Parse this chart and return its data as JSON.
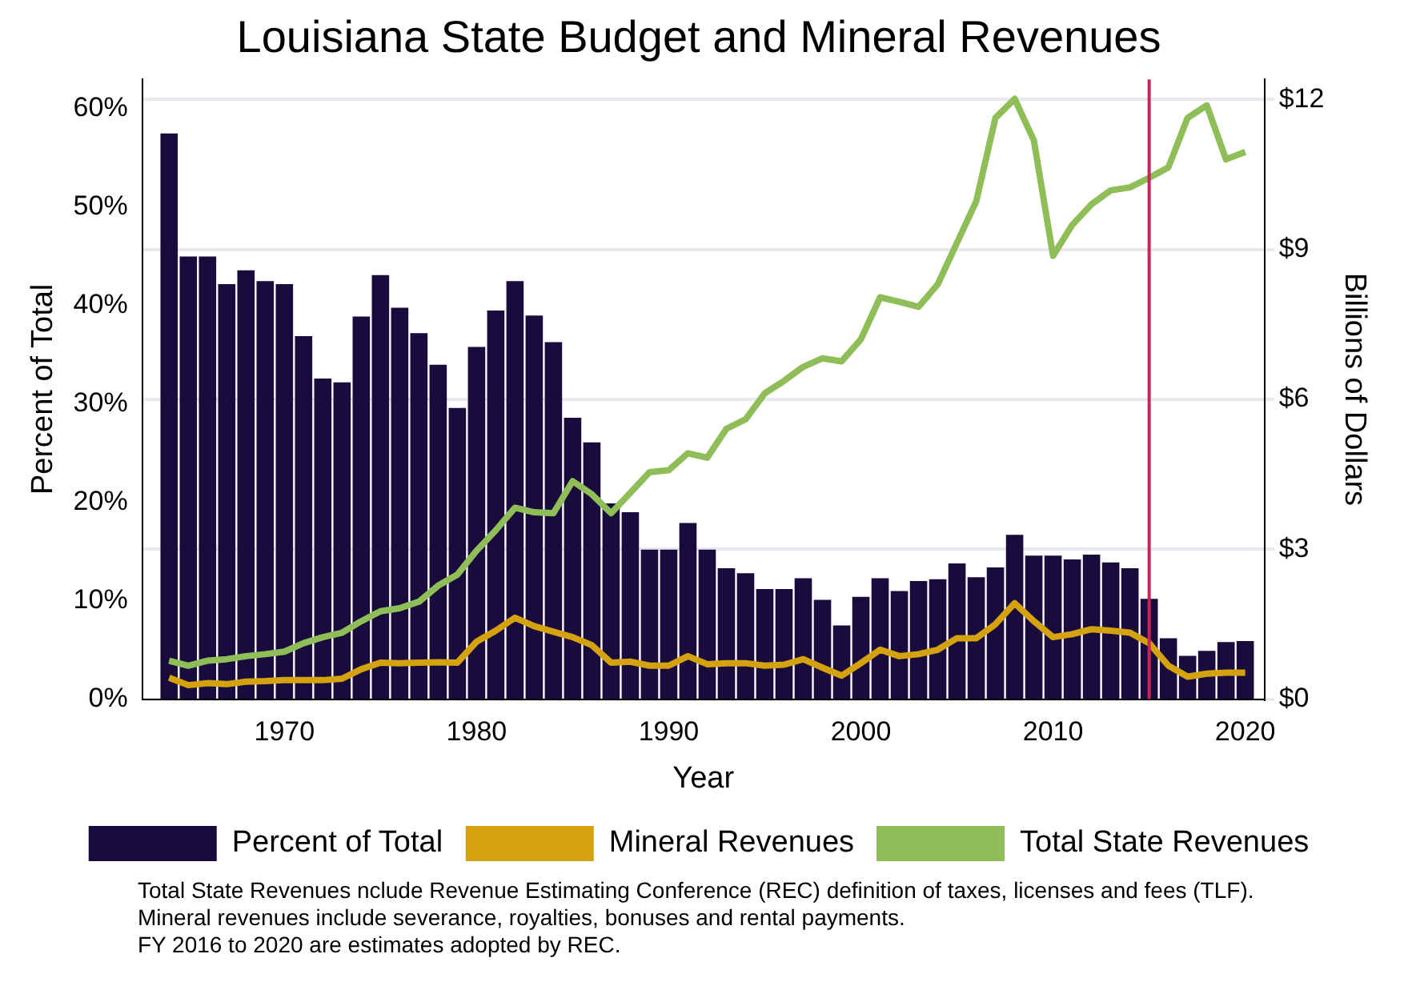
{
  "chart_data": {
    "type": "bar",
    "title": "Louisiana State Budget and Mineral Revenues",
    "xlabel": "Year",
    "ylabel": "Percent of Total",
    "y2label": "Billions of Dollars",
    "x": [
      1964,
      1965,
      1966,
      1967,
      1968,
      1969,
      1970,
      1971,
      1972,
      1973,
      1974,
      1975,
      1976,
      1977,
      1978,
      1979,
      1980,
      1981,
      1982,
      1983,
      1984,
      1985,
      1986,
      1987,
      1988,
      1989,
      1990,
      1991,
      1992,
      1993,
      1994,
      1995,
      1996,
      1997,
      1998,
      1999,
      2000,
      2001,
      2002,
      2003,
      2004,
      2005,
      2006,
      2007,
      2008,
      2009,
      2010,
      2011,
      2012,
      2013,
      2014,
      2015,
      2016,
      2017,
      2018,
      2019,
      2020
    ],
    "series": [
      {
        "name": "Percent of Total",
        "axis": "y",
        "color": "#1a0b3d",
        "values": [
          57.5,
          45,
          45,
          42.2,
          43.6,
          42.5,
          42.2,
          36.9,
          32.6,
          32.2,
          38.9,
          43.1,
          39.8,
          37.2,
          34.0,
          29.6,
          35.8,
          39.5,
          42.5,
          39.0,
          36.3,
          28.6,
          26.1,
          19.9,
          19.0,
          15.2,
          15.2,
          17.9,
          15.2,
          13.3,
          12.8,
          11.2,
          11.2,
          12.3,
          10.1,
          7.5,
          10.4,
          12.3,
          11.0,
          12.0,
          12.2,
          13.8,
          12.4,
          13.4,
          16.7,
          14.6,
          14.6,
          14.2,
          14.7,
          13.9,
          13.3,
          10.2,
          6.2,
          4.4,
          4.9,
          5.8,
          5.9
        ]
      },
      {
        "name": "Mineral Revenues",
        "type": "line",
        "axis": "y2",
        "color": "#d4a10f",
        "values": [
          0.43,
          0.28,
          0.32,
          0.3,
          0.35,
          0.36,
          0.38,
          0.38,
          0.38,
          0.41,
          0.6,
          0.73,
          0.72,
          0.73,
          0.74,
          0.73,
          1.15,
          1.37,
          1.63,
          1.46,
          1.35,
          1.24,
          1.08,
          0.73,
          0.75,
          0.67,
          0.67,
          0.86,
          0.7,
          0.72,
          0.72,
          0.67,
          0.69,
          0.8,
          0.63,
          0.47,
          0.72,
          0.99,
          0.86,
          0.9,
          0.99,
          1.22,
          1.22,
          1.5,
          1.92,
          1.56,
          1.24,
          1.3,
          1.4,
          1.37,
          1.33,
          1.12,
          0.67,
          0.45,
          0.51,
          0.53,
          0.53
        ]
      },
      {
        "name": "Total State Revenues",
        "type": "line",
        "axis": "y2",
        "color": "#8fbd57",
        "values": [
          0.77,
          0.67,
          0.77,
          0.8,
          0.86,
          0.9,
          0.95,
          1.12,
          1.24,
          1.33,
          1.56,
          1.76,
          1.82,
          1.95,
          2.27,
          2.49,
          2.97,
          3.38,
          3.83,
          3.74,
          3.72,
          4.36,
          4.1,
          3.72,
          4.13,
          4.54,
          4.58,
          4.92,
          4.83,
          5.41,
          5.6,
          6.12,
          6.37,
          6.65,
          6.82,
          6.76,
          7.2,
          8.04,
          7.95,
          7.85,
          8.3,
          9.13,
          9.96,
          11.63,
          12.01,
          11.18,
          8.87,
          9.49,
          9.9,
          10.18,
          10.24,
          10.43,
          10.64,
          11.63,
          11.88,
          10.8,
          10.95
        ]
      }
    ],
    "xlim": [
      1962.6,
      2021
    ],
    "xticks": [
      1970,
      1980,
      1990,
      2000,
      2010,
      2020
    ],
    "ylim": [
      0,
      63
    ],
    "yticks": [
      {
        "value": 0,
        "label": "0%"
      },
      {
        "value": 10,
        "label": "10%"
      },
      {
        "value": 20,
        "label": "20%"
      },
      {
        "value": 30,
        "label": "30%"
      },
      {
        "value": 40,
        "label": "40%"
      },
      {
        "value": 50,
        "label": "50%"
      },
      {
        "value": 60,
        "label": "60%"
      }
    ],
    "y2lim": [
      0,
      12.4
    ],
    "y2ticks": [
      {
        "value": 0,
        "label": "$0"
      },
      {
        "value": 3,
        "label": "$3"
      },
      {
        "value": 6,
        "label": "$6"
      },
      {
        "value": 9,
        "label": "$9"
      },
      {
        "value": 12,
        "label": "$12"
      }
    ],
    "ref_lines": [
      {
        "axis": "x",
        "value": 2015,
        "color": "#c8235a"
      }
    ],
    "grid": "y",
    "legend": "bottom",
    "annotations": [
      "Total State Revenues nclude Revenue Estimating Conference (REC) definition of taxes, licenses and fees (TLF).",
      "Mineral revenues include severance, royalties, bonuses and rental payments.",
      "FY 2016 to 2020 are estimates adopted by REC."
    ]
  }
}
